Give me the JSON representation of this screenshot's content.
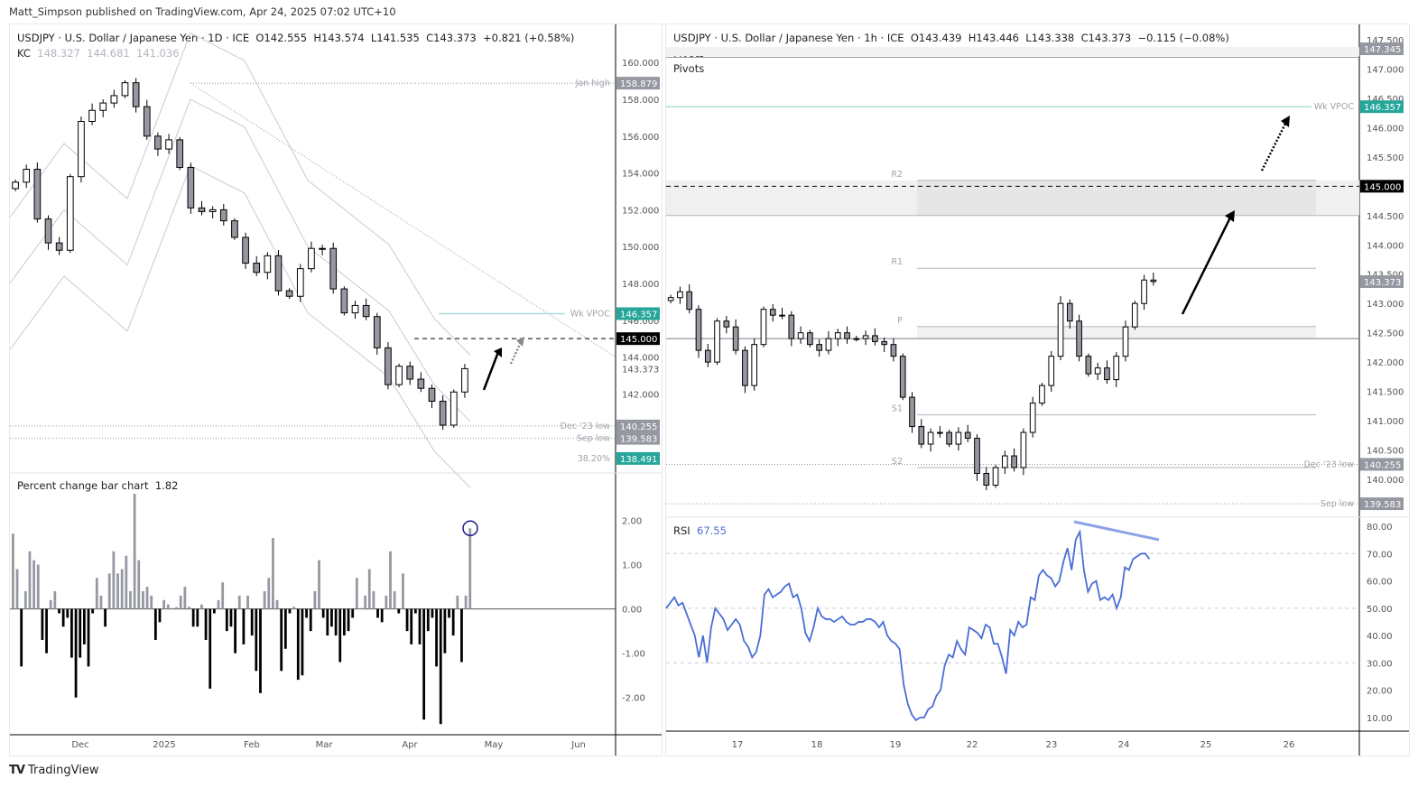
{
  "publisher": "Matt_Simpson published on TradingView.com, Apr 24, 2025 07:02 UTC+10",
  "footer": {
    "logo": "TV",
    "brand": "TradingView"
  },
  "left_chart": {
    "symbol_line": "USDJPY · U.S. Dollar / Japanese Yen · 1D · ICE",
    "ohlc": {
      "o": "O142.555",
      "h": "H143.574",
      "l": "L141.535",
      "c": "C143.373",
      "chg": "+0.821 (+0.58%)"
    },
    "kc": {
      "label": "KC",
      "upper": "148.327",
      "mid": "144.681",
      "lower": "141.036"
    },
    "price_axis": [
      "160.000",
      "158.000",
      "156.000",
      "154.000",
      "152.000",
      "150.000",
      "148.000",
      "146.000",
      "144.000",
      "143.373",
      "142.000"
    ],
    "price_tags": [
      {
        "label": "Jan high",
        "value": "158.879",
        "color": "#9598a1"
      },
      {
        "label": "Wk VPOC",
        "value": "146.357",
        "color": "#26a69a"
      },
      {
        "label": "",
        "value": "145.000",
        "color": "#000000"
      },
      {
        "label": "Dec '23 low",
        "value": "140.255",
        "color": "#9598a1"
      },
      {
        "label": "Sep low",
        "value": "139.583",
        "color": "#9598a1"
      },
      {
        "label": "38.20%",
        "value": "138.491",
        "color": "#26a69a"
      }
    ],
    "pct_pane": {
      "title": "Percent change bar chart",
      "value": "1.82",
      "axis": [
        "2.00",
        "1.00",
        "0.00",
        "-1.00",
        "-2.00"
      ]
    },
    "time_axis": [
      "Dec",
      "2025",
      "Feb",
      "Mar",
      "Apr",
      "May",
      "Jun"
    ]
  },
  "right_chart": {
    "symbol_line": "USDJPY · U.S. Dollar / Japanese Yen · 1h · ICE",
    "ohlc": {
      "o": "O143.439",
      "h": "H143.446",
      "l": "L143.338",
      "c": "C143.373",
      "chg": "−0.115 (−0.08%)"
    },
    "indicators": [
      "Pivots",
      "Pivots"
    ],
    "price_axis": [
      "147.500",
      "147.000",
      "146.500",
      "146.000",
      "145.500",
      "145.000",
      "144.500",
      "144.000",
      "143.500",
      "143.000",
      "142.500",
      "142.000",
      "141.500",
      "141.000",
      "140.500",
      "140.000"
    ],
    "price_tags": [
      {
        "label": "",
        "value": "147.345",
        "color": "#9598a1"
      },
      {
        "label": "Wk VPOC",
        "value": "146.357",
        "color": "#26a69a"
      },
      {
        "label": "",
        "value": "145.000",
        "color": "#000000"
      },
      {
        "label": "",
        "value": "143.373",
        "color": "#9598a1"
      },
      {
        "label": "Dec '23 low",
        "value": "140.255",
        "color": "#9598a1"
      },
      {
        "label": "Sep low",
        "value": "139.583",
        "color": "#9598a1"
      }
    ],
    "pivots": [
      "R2",
      "R1",
      "P",
      "S1",
      "S2"
    ],
    "rsi_pane": {
      "title": "RSI",
      "value": "67.55",
      "axis": [
        "80.00",
        "70.00",
        "60.00",
        "50.00",
        "40.00",
        "30.00",
        "20.00",
        "10.00"
      ]
    },
    "time_axis": [
      "17",
      "18",
      "19",
      "22",
      "23",
      "24",
      "25",
      "26"
    ]
  },
  "chart_data": [
    {
      "type": "candlestick",
      "title": "USDJPY · U.S. Dollar / Japanese Yen · 1D · ICE",
      "ylim": [
        137.8,
        160.6
      ],
      "x_labels": [
        "Dec",
        "2025",
        "Feb",
        "Mar",
        "Apr",
        "May",
        "Jun"
      ],
      "closes_approx": [
        153.5,
        154.2,
        151.5,
        150.2,
        149.8,
        153.8,
        156.8,
        157.4,
        157.8,
        158.2,
        158.9,
        157.6,
        156.0,
        155.3,
        155.8,
        154.3,
        152.1,
        151.9,
        152.0,
        151.4,
        150.5,
        149.1,
        148.6,
        149.5,
        147.6,
        147.3,
        148.8,
        149.9,
        149.9,
        147.7,
        146.4,
        146.8,
        146.2,
        144.5,
        142.5,
        143.5,
        142.8,
        142.3,
        141.6,
        140.3,
        142.1,
        143.37
      ],
      "levels": {
        "jan_high": 158.879,
        "wk_vpoc": 146.357,
        "target": 145.0,
        "dec23_low": 140.255,
        "sep_low": 139.583,
        "fib_38_2": 138.491
      },
      "keltner": {
        "upper": 148.327,
        "mid": 144.681,
        "lower": 141.036
      }
    },
    {
      "type": "bar",
      "title": "Percent change bar chart",
      "last_value": 1.82,
      "ylim": [
        -2.8,
        2.6
      ],
      "values_approx": [
        1.7,
        0.9,
        -1.3,
        0.4,
        1.3,
        1.1,
        1.0,
        -0.7,
        -1.0,
        0.2,
        0.4,
        -0.1,
        -0.4,
        -0.2,
        -1.1,
        -2.0,
        -1.1,
        -0.8,
        -1.3,
        -0.1,
        0.7,
        0.3,
        -0.4,
        0.8,
        1.3,
        0.8,
        0.9,
        1.2,
        0.4,
        2.6,
        1.1,
        0.4,
        0.5,
        0.3,
        -0.7,
        -0.3,
        0.2,
        0.1,
        0.02,
        0.04,
        0.3,
        0.5,
        0.05,
        -0.4,
        -0.4,
        0.1,
        -0.7,
        -1.8,
        -0.1,
        0.2,
        0.6,
        -0.5,
        -0.4,
        -1.0,
        0.3,
        -0.8,
        0.3,
        -0.6,
        -1.4,
        -1.9,
        0.4,
        0.7,
        1.6,
        0.2,
        -1.4,
        -0.9,
        -0.1,
        0.05,
        -1.6,
        -1.5,
        -0.2,
        -0.5,
        0.4,
        1.1,
        -0.2,
        -0.6,
        -0.4,
        -0.6,
        -1.2,
        -0.6,
        -0.5,
        -0.2,
        0.7,
        0.02,
        0.3,
        0.9,
        0.4,
        -0.2,
        -0.3,
        0.3,
        1.3,
        0.4,
        -0.1,
        0.8,
        -0.5,
        -0.8,
        -0.1,
        -0.8,
        -2.5,
        -0.5,
        -0.2,
        -1.3,
        -2.6,
        -1.0,
        -0.2,
        -0.6,
        0.3,
        -1.2,
        0.3,
        1.82
      ]
    },
    {
      "type": "candlestick",
      "title": "USDJPY · U.S. Dollar / Japanese Yen · 1h · ICE",
      "ylim": [
        139.5,
        147.8
      ],
      "x_labels": [
        "17",
        "18",
        "19",
        "22",
        "23",
        "24",
        "25",
        "26"
      ],
      "closes_approx": [
        143.1,
        143.2,
        142.9,
        142.2,
        142.0,
        142.7,
        142.6,
        142.2,
        141.6,
        142.3,
        142.9,
        142.8,
        142.8,
        142.4,
        142.5,
        142.3,
        142.2,
        142.4,
        142.5,
        142.4,
        142.4,
        142.45,
        142.35,
        142.3,
        142.1,
        141.4,
        140.9,
        140.6,
        140.8,
        140.8,
        140.6,
        140.8,
        140.7,
        140.1,
        139.9,
        140.2,
        140.4,
        140.2,
        140.8,
        141.3,
        141.6,
        142.1,
        143.0,
        142.7,
        142.1,
        141.8,
        141.9,
        141.7,
        142.1,
        142.6,
        143.0,
        143.4,
        143.373
      ],
      "pivots": {
        "R2": 145.1,
        "R1": 143.6,
        "P": 142.6,
        "S1": 141.1,
        "S2": 140.2
      },
      "levels": {
        "wk_vpoc": 146.357,
        "target": 145.0,
        "dec23_low": 140.255,
        "sep_low": 139.583,
        "pivot_top": 147.345
      },
      "resistance_zone": [
        144.5,
        145.1
      ]
    },
    {
      "type": "line",
      "title": "RSI",
      "last_value": 67.55,
      "ylim": [
        5,
        82
      ],
      "reference_lines": [
        70,
        50,
        30
      ],
      "values_approx": [
        50,
        52,
        54,
        51,
        52,
        48,
        44,
        40,
        32,
        40,
        30,
        43,
        50,
        48,
        46,
        42,
        44,
        46,
        44,
        38,
        36,
        32,
        34,
        40,
        55,
        57,
        54,
        55,
        56,
        58,
        59,
        54,
        55,
        50,
        41,
        38,
        43,
        50,
        47,
        46,
        46,
        45,
        46,
        47,
        45,
        44,
        44,
        45,
        45,
        46,
        46,
        45,
        43,
        45,
        40,
        38,
        37,
        35,
        22,
        15,
        11,
        9,
        10,
        10,
        13,
        14,
        18,
        20,
        29,
        33,
        32,
        38,
        35,
        33,
        43,
        42,
        41,
        39,
        44,
        43,
        37,
        37,
        32,
        26,
        42,
        40,
        45,
        43,
        44,
        54,
        53,
        62,
        64,
        62,
        61,
        58,
        60,
        67,
        72,
        64,
        75,
        78,
        64,
        56,
        59,
        60,
        53,
        54,
        53,
        55,
        50,
        54,
        65,
        64,
        68,
        69,
        70,
        70,
        68
      ]
    }
  ]
}
